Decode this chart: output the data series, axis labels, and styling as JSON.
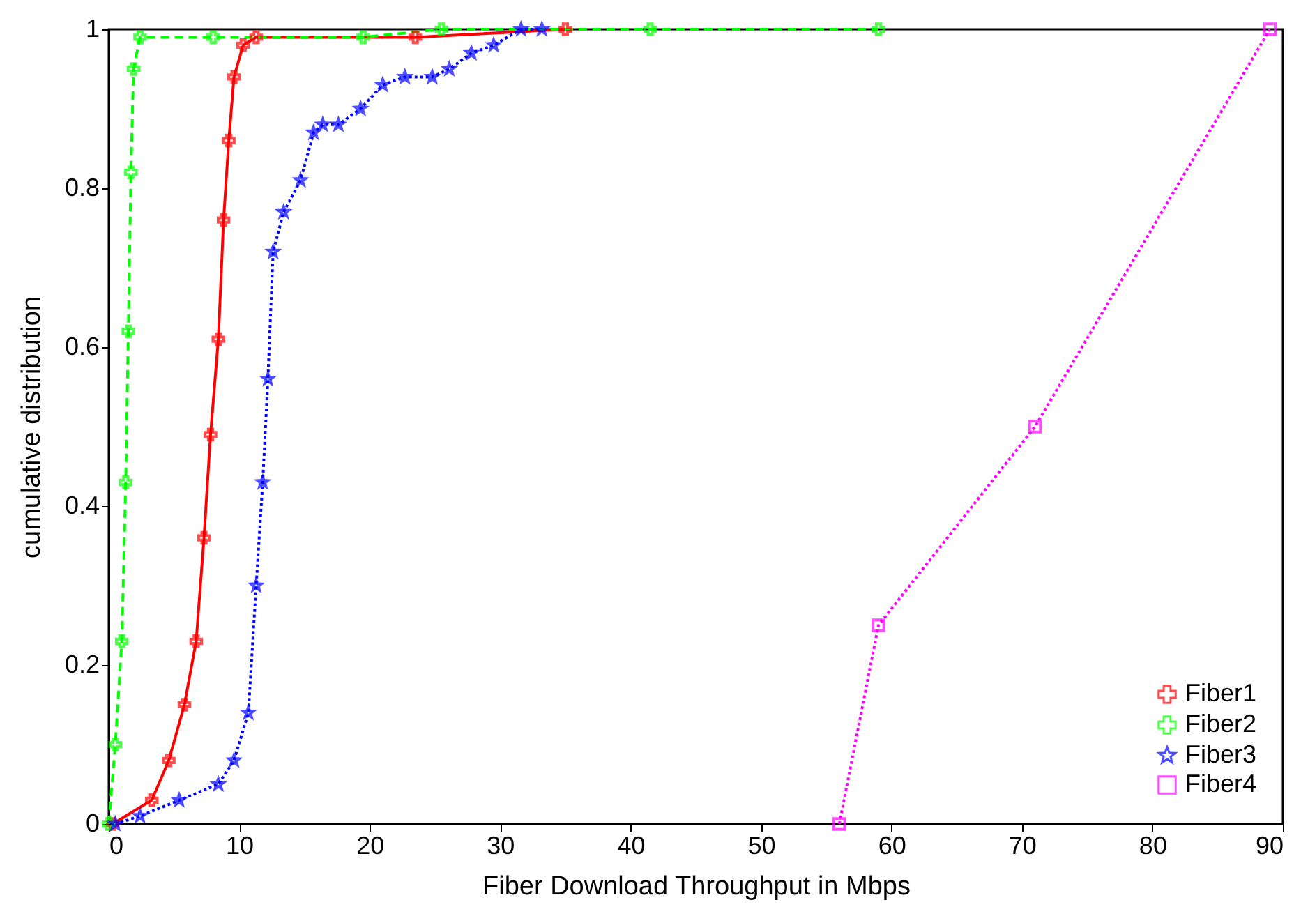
{
  "chart_data": {
    "type": "line",
    "xlabel": "Fiber Download Throughput in Mbps",
    "ylabel": "cumulative distribution",
    "xlim": [
      0,
      90
    ],
    "ylim": [
      0,
      1
    ],
    "xticks": [
      0,
      10,
      20,
      30,
      40,
      50,
      60,
      70,
      80,
      90
    ],
    "yticks": [
      0,
      0.2,
      0.4,
      0.6,
      0.8,
      1
    ],
    "grid": false,
    "legend": "bottom right",
    "series": [
      {
        "name": "Fiber1",
        "color": "#ff0000",
        "marker": "cross",
        "line_style": "solid",
        "x": [
          0.3,
          3.3,
          4.6,
          5.8,
          6.7,
          7.3,
          7.8,
          8.4,
          8.8,
          9.2,
          9.6,
          10.3,
          11.3,
          23.5,
          35
        ],
        "values": [
          0,
          0.03,
          0.08,
          0.15,
          0.23,
          0.36,
          0.49,
          0.61,
          0.76,
          0.86,
          0.94,
          0.98,
          0.99,
          0.99,
          1
        ]
      },
      {
        "name": "Fiber2",
        "color": "#00ff00",
        "marker": "cross",
        "line_style": "dashed",
        "x": [
          0,
          0.5,
          1.0,
          1.3,
          1.5,
          1.7,
          1.9,
          2.4,
          8,
          19.5,
          25.5,
          41.5,
          59
        ],
        "values": [
          0,
          0.1,
          0.23,
          0.43,
          0.62,
          0.82,
          0.95,
          0.99,
          0.99,
          0.99,
          1,
          1,
          1
        ]
      },
      {
        "name": "Fiber3",
        "color": "#0000ff",
        "marker": "star",
        "line_style": "dotted",
        "x": [
          0.5,
          2.4,
          5.4,
          8.4,
          9.6,
          10.7,
          11.3,
          11.8,
          12.2,
          12.6,
          13.4,
          14.7,
          15.7,
          16.4,
          17.6,
          19.3,
          21.0,
          22.7,
          24.8,
          26.1,
          27.8,
          29.5,
          31.6,
          33.2
        ],
        "values": [
          0,
          0.01,
          0.03,
          0.05,
          0.08,
          0.14,
          0.3,
          0.43,
          0.56,
          0.72,
          0.77,
          0.81,
          0.87,
          0.88,
          0.88,
          0.9,
          0.93,
          0.94,
          0.94,
          0.95,
          0.97,
          0.98,
          1,
          1
        ]
      },
      {
        "name": "Fiber4",
        "color": "#ff00ff",
        "marker": "square",
        "line_style": "dotted",
        "x": [
          56,
          59,
          71,
          89
        ],
        "values": [
          0,
          0.25,
          0.5,
          1
        ]
      }
    ]
  }
}
